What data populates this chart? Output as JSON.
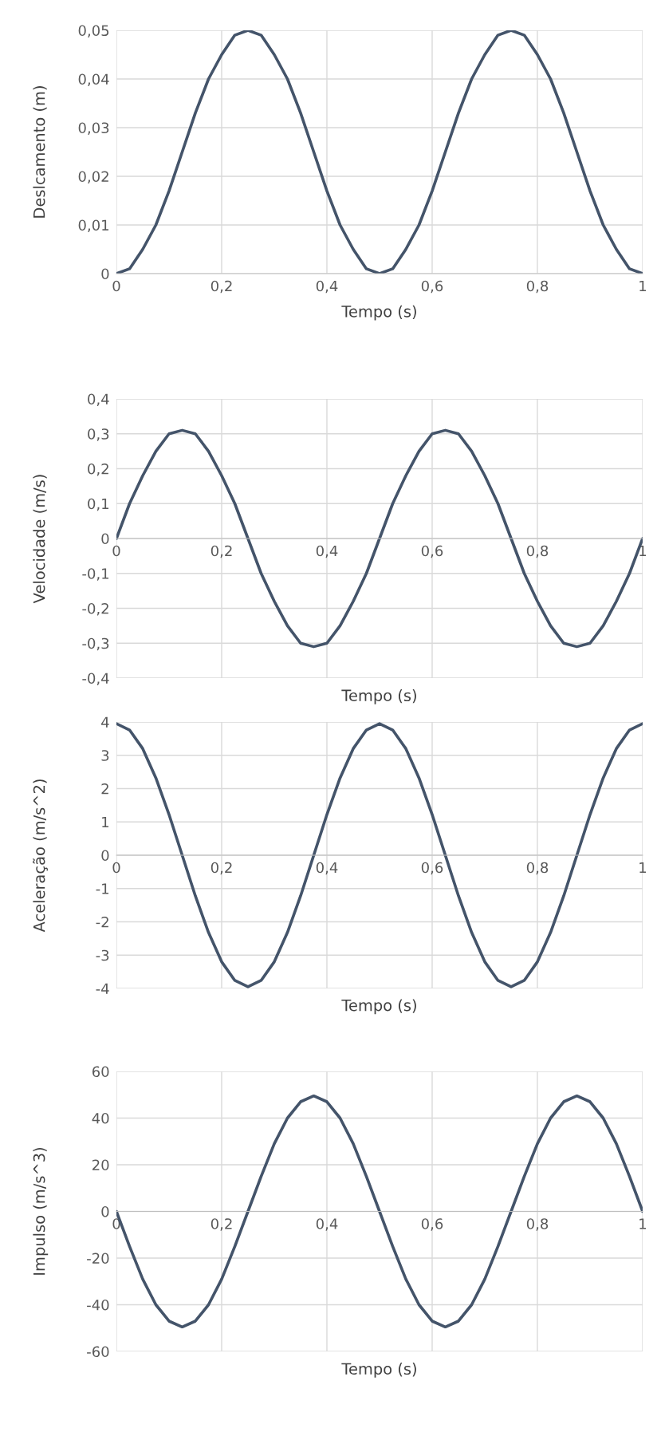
{
  "chart_data": [
    {
      "type": "line",
      "xlabel": "Tempo (s)",
      "ylabel": "Deslcamento (m)",
      "x": [
        0,
        0.025,
        0.05,
        0.075,
        0.1,
        0.125,
        0.15,
        0.175,
        0.2,
        0.225,
        0.25,
        0.275,
        0.3,
        0.325,
        0.35,
        0.375,
        0.4,
        0.425,
        0.45,
        0.475,
        0.5,
        0.525,
        0.55,
        0.575,
        0.6,
        0.625,
        0.65,
        0.675,
        0.7,
        0.725,
        0.75,
        0.775,
        0.8,
        0.825,
        0.85,
        0.875,
        0.9,
        0.925,
        0.95,
        0.975,
        1
      ],
      "series": [
        {
          "color": "#44546a",
          "values": [
            0,
            0.001,
            0.005,
            0.01,
            0.017,
            0.025,
            0.033,
            0.04,
            0.045,
            0.049,
            0.05,
            0.049,
            0.045,
            0.04,
            0.033,
            0.025,
            0.017,
            0.01,
            0.005,
            0.001,
            0,
            0.001,
            0.005,
            0.01,
            0.017,
            0.025,
            0.033,
            0.04,
            0.045,
            0.049,
            0.05,
            0.049,
            0.045,
            0.04,
            0.033,
            0.025,
            0.017,
            0.01,
            0.005,
            0.001,
            0
          ]
        }
      ],
      "xlim": [
        0,
        1
      ],
      "xticks": [
        {
          "value": 0,
          "label": "0"
        },
        {
          "value": 0.2,
          "label": "0,2"
        },
        {
          "value": 0.4,
          "label": "0,4"
        },
        {
          "value": 0.6,
          "label": "0,6"
        },
        {
          "value": 0.8,
          "label": "0,8"
        },
        {
          "value": 1,
          "label": "1"
        }
      ],
      "ylim": [
        0,
        0.05
      ],
      "yticks": [
        {
          "value": 0,
          "label": "0"
        },
        {
          "value": 0.01,
          "label": "0,01"
        },
        {
          "value": 0.02,
          "label": "0,02"
        },
        {
          "value": 0.03,
          "label": "0,03"
        },
        {
          "value": 0.04,
          "label": "0,04"
        },
        {
          "value": 0.05,
          "label": "0,05"
        }
      ],
      "grid": true,
      "line_style": "solid",
      "marker": "none"
    },
    {
      "type": "line",
      "xlabel": "Tempo (s)",
      "ylabel": "Velocidade (m/s)",
      "x": [
        0,
        0.025,
        0.05,
        0.075,
        0.1,
        0.125,
        0.15,
        0.175,
        0.2,
        0.225,
        0.25,
        0.275,
        0.3,
        0.325,
        0.35,
        0.375,
        0.4,
        0.425,
        0.45,
        0.475,
        0.5,
        0.525,
        0.55,
        0.575,
        0.6,
        0.625,
        0.65,
        0.675,
        0.7,
        0.725,
        0.75,
        0.775,
        0.8,
        0.825,
        0.85,
        0.875,
        0.9,
        0.925,
        0.95,
        0.975,
        1
      ],
      "series": [
        {
          "color": "#44546a",
          "values": [
            0,
            0.1,
            0.18,
            0.25,
            0.3,
            0.31,
            0.3,
            0.25,
            0.18,
            0.1,
            0,
            -0.1,
            -0.18,
            -0.25,
            -0.3,
            -0.31,
            -0.3,
            -0.25,
            -0.18,
            -0.1,
            0,
            0.1,
            0.18,
            0.25,
            0.3,
            0.31,
            0.3,
            0.25,
            0.18,
            0.1,
            0,
            -0.1,
            -0.18,
            -0.25,
            -0.3,
            -0.31,
            -0.3,
            -0.25,
            -0.18,
            -0.1,
            0
          ]
        }
      ],
      "xlim": [
        0,
        1
      ],
      "xticks": [
        {
          "value": 0,
          "label": "0"
        },
        {
          "value": 0.2,
          "label": "0,2"
        },
        {
          "value": 0.4,
          "label": "0,4"
        },
        {
          "value": 0.6,
          "label": "0,6"
        },
        {
          "value": 0.8,
          "label": "0,8"
        },
        {
          "value": 1,
          "label": "1"
        }
      ],
      "ylim": [
        -0.4,
        0.4
      ],
      "yticks": [
        {
          "value": -0.4,
          "label": "-0,4"
        },
        {
          "value": -0.3,
          "label": "-0,3"
        },
        {
          "value": -0.2,
          "label": "-0,2"
        },
        {
          "value": -0.1,
          "label": "-0,1"
        },
        {
          "value": 0,
          "label": "0"
        },
        {
          "value": 0.1,
          "label": "0,1"
        },
        {
          "value": 0.2,
          "label": "0,2"
        },
        {
          "value": 0.3,
          "label": "0,3"
        },
        {
          "value": 0.4,
          "label": "0,4"
        }
      ],
      "grid": true,
      "line_style": "solid",
      "marker": "none"
    },
    {
      "type": "line",
      "xlabel": "Tempo (s)",
      "ylabel": "Aceleração (m/s^2)",
      "x": [
        0,
        0.025,
        0.05,
        0.075,
        0.1,
        0.125,
        0.15,
        0.175,
        0.2,
        0.225,
        0.25,
        0.275,
        0.3,
        0.325,
        0.35,
        0.375,
        0.4,
        0.425,
        0.45,
        0.475,
        0.5,
        0.525,
        0.55,
        0.575,
        0.6,
        0.625,
        0.65,
        0.675,
        0.7,
        0.725,
        0.75,
        0.775,
        0.8,
        0.825,
        0.85,
        0.875,
        0.9,
        0.925,
        0.95,
        0.975,
        1
      ],
      "series": [
        {
          "color": "#44546a",
          "values": [
            3.95,
            3.76,
            3.2,
            2.32,
            1.22,
            0,
            -1.22,
            -2.32,
            -3.2,
            -3.76,
            -3.95,
            -3.76,
            -3.2,
            -2.32,
            -1.22,
            0,
            1.22,
            2.32,
            3.2,
            3.76,
            3.95,
            3.76,
            3.2,
            2.32,
            1.22,
            0,
            -1.22,
            -2.32,
            -3.2,
            -3.76,
            -3.95,
            -3.76,
            -3.2,
            -2.32,
            -1.22,
            0,
            1.22,
            2.32,
            3.2,
            3.76,
            3.95
          ]
        }
      ],
      "xlim": [
        0,
        1
      ],
      "xticks": [
        {
          "value": 0,
          "label": "0"
        },
        {
          "value": 0.2,
          "label": "0,2"
        },
        {
          "value": 0.4,
          "label": "0,4"
        },
        {
          "value": 0.6,
          "label": "0,6"
        },
        {
          "value": 0.8,
          "label": "0,8"
        },
        {
          "value": 1,
          "label": "1"
        }
      ],
      "ylim": [
        -4,
        4
      ],
      "yticks": [
        -4,
        -3,
        -2,
        -1,
        0,
        1,
        2,
        3,
        4
      ],
      "grid": true,
      "line_style": "solid",
      "marker": "none"
    },
    {
      "type": "line",
      "xlabel": "Tempo (s)",
      "ylabel": "Impulso (m/s^3)",
      "x": [
        0,
        0.025,
        0.05,
        0.075,
        0.1,
        0.125,
        0.15,
        0.175,
        0.2,
        0.225,
        0.25,
        0.275,
        0.3,
        0.325,
        0.35,
        0.375,
        0.4,
        0.425,
        0.45,
        0.475,
        0.5,
        0.525,
        0.55,
        0.575,
        0.6,
        0.625,
        0.65,
        0.675,
        0.7,
        0.725,
        0.75,
        0.775,
        0.8,
        0.825,
        0.85,
        0.875,
        0.9,
        0.925,
        0.95,
        0.975,
        1
      ],
      "series": [
        {
          "color": "#44546a",
          "values": [
            0,
            -15,
            -29,
            -40,
            -47,
            -49.5,
            -47,
            -40,
            -29,
            -15,
            0,
            15,
            29,
            40,
            47,
            49.5,
            47,
            40,
            29,
            15,
            0,
            -15,
            -29,
            -40,
            -47,
            -49.5,
            -47,
            -40,
            -29,
            -15,
            0,
            15,
            29,
            40,
            47,
            49.5,
            47,
            40,
            29,
            15,
            0
          ]
        }
      ],
      "xlim": [
        0,
        1
      ],
      "xticks": [
        {
          "value": 0,
          "label": "0"
        },
        {
          "value": 0.2,
          "label": "0,2"
        },
        {
          "value": 0.4,
          "label": "0,4"
        },
        {
          "value": 0.6,
          "label": "0,6"
        },
        {
          "value": 0.8,
          "label": "0,8"
        },
        {
          "value": 1,
          "label": "1"
        }
      ],
      "ylim": [
        -60,
        60
      ],
      "yticks": [
        -60,
        -40,
        -20,
        0,
        20,
        40,
        60
      ],
      "grid": true,
      "line_style": "solid",
      "marker": "none"
    }
  ]
}
